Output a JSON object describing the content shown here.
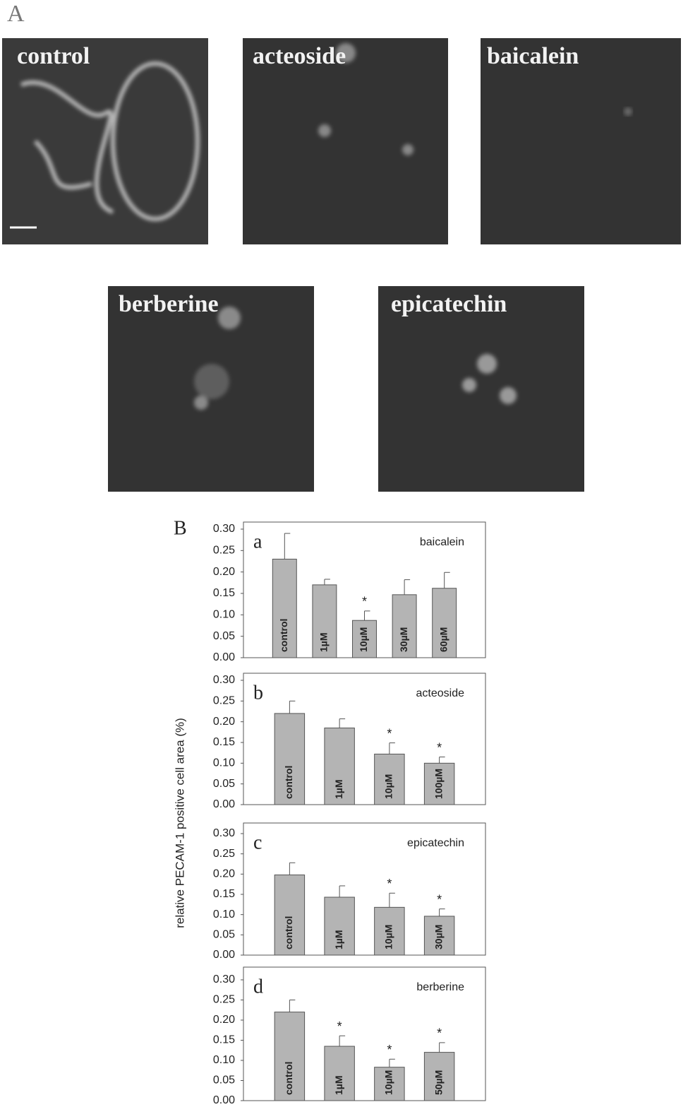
{
  "figure": {
    "panel_a": "A",
    "panel_b": "B",
    "shared_ylabel": "relative PECAM-1 positive cell area (%)",
    "images": [
      "control",
      "acteoside",
      "baicalein",
      "berberine",
      "epicatechin"
    ]
  },
  "chart_data": [
    {
      "type": "bar",
      "panel": "a",
      "title": "baicalein",
      "categories": [
        "control",
        "1µM",
        "10µM",
        "30µM",
        "60µM"
      ],
      "values": [
        0.23,
        0.17,
        0.087,
        0.147,
        0.162
      ],
      "errors": [
        0.06,
        0.013,
        0.022,
        0.035,
        0.037
      ],
      "annotations": [
        null,
        null,
        "*",
        null,
        null
      ],
      "color": "#b4b4b4",
      "ylim": [
        0,
        0.3
      ],
      "yticks": [
        {
          "value": 0,
          "label": "0.00"
        },
        {
          "value": 0.05,
          "label": "0.05"
        },
        {
          "value": 0.1,
          "label": "0.10"
        },
        {
          "value": 0.15,
          "label": "0.15"
        },
        {
          "value": 0.2,
          "label": "0.20"
        },
        {
          "value": 0.25,
          "label": "0.25"
        },
        {
          "value": 0.3,
          "label": "0.30"
        }
      ]
    },
    {
      "type": "bar",
      "panel": "b",
      "title": "acteoside",
      "categories": [
        "control",
        "1µM",
        "10µM",
        "100µM"
      ],
      "values": [
        0.22,
        0.185,
        0.122,
        0.1
      ],
      "errors": [
        0.03,
        0.022,
        0.027,
        0.015
      ],
      "annotations": [
        null,
        null,
        "*",
        "*"
      ],
      "color": "#b4b4b4",
      "ylim": [
        0,
        0.3
      ],
      "yticks": [
        {
          "value": 0,
          "label": "0.00"
        },
        {
          "value": 0.05,
          "label": "0.05"
        },
        {
          "value": 0.1,
          "label": "0.10"
        },
        {
          "value": 0.15,
          "label": "0.15"
        },
        {
          "value": 0.2,
          "label": "0.20"
        },
        {
          "value": 0.25,
          "label": "0.25"
        },
        {
          "value": 0.3,
          "label": "0.30"
        }
      ]
    },
    {
      "type": "bar",
      "panel": "c",
      "title": "epicatechin",
      "categories": [
        "control",
        "1µM",
        "10µM",
        "30µM"
      ],
      "values": [
        0.198,
        0.143,
        0.118,
        0.096
      ],
      "errors": [
        0.03,
        0.028,
        0.035,
        0.018
      ],
      "annotations": [
        null,
        null,
        "*",
        "*"
      ],
      "color": "#b4b4b4",
      "ylim": [
        0,
        0.3
      ],
      "yticks": [
        {
          "value": 0,
          "label": "0.00"
        },
        {
          "value": 0.05,
          "label": "0.05"
        },
        {
          "value": 0.1,
          "label": "0.10"
        },
        {
          "value": 0.15,
          "label": "0.15"
        },
        {
          "value": 0.2,
          "label": "0.20"
        },
        {
          "value": 0.25,
          "label": "0.25"
        },
        {
          "value": 0.3,
          "label": "0.30"
        }
      ]
    },
    {
      "type": "bar",
      "panel": "d",
      "title": "berberine",
      "categories": [
        "control",
        "1µM",
        "10µM",
        "50µM"
      ],
      "values": [
        0.22,
        0.135,
        0.083,
        0.12
      ],
      "errors": [
        0.03,
        0.026,
        0.02,
        0.024
      ],
      "annotations": [
        null,
        "*",
        "*",
        "*"
      ],
      "color": "#b4b4b4",
      "ylim": [
        0,
        0.3
      ],
      "yticks": [
        {
          "value": 0,
          "label": "0.00"
        },
        {
          "value": 0.05,
          "label": "0.05"
        },
        {
          "value": 0.1,
          "label": "0.10"
        },
        {
          "value": 0.15,
          "label": "0.15"
        },
        {
          "value": 0.2,
          "label": "0.20"
        },
        {
          "value": 0.25,
          "label": "0.25"
        },
        {
          "value": 0.3,
          "label": "0.30"
        }
      ]
    }
  ]
}
